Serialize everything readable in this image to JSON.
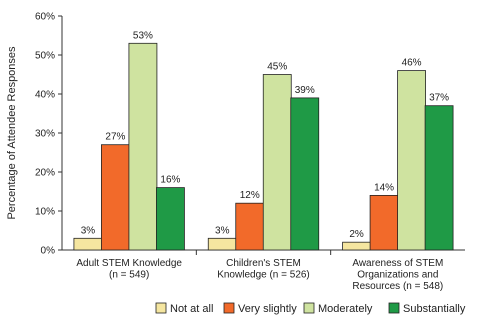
{
  "chart_data": {
    "type": "bar",
    "ylabel": "Percentage of Attendee Responses",
    "ylim": [
      0,
      60
    ],
    "yticks": [
      "0%",
      "10%",
      "20%",
      "30%",
      "40%",
      "50%",
      "60%"
    ],
    "ytick_values": [
      0,
      10,
      20,
      30,
      40,
      50,
      60
    ],
    "grid": false,
    "legend_position": "bottom",
    "categories": [
      [
        "Adult STEM Knowledge",
        "(n = 549)"
      ],
      [
        "Children's STEM",
        "Knowledge (n = 526)"
      ],
      [
        "Awareness of STEM",
        "Organizations and",
        "Resources (n = 548)"
      ]
    ],
    "series": [
      {
        "name": "Not at all",
        "color": "#f5e6a0",
        "values": [
          3,
          3,
          2
        ],
        "labels": [
          "3%",
          "3%",
          "2%"
        ]
      },
      {
        "name": "Very slightly",
        "color": "#f26a2a",
        "values": [
          27,
          12,
          14
        ],
        "labels": [
          "27%",
          "12%",
          "14%"
        ]
      },
      {
        "name": "Moderately",
        "color": "#cfe3a0",
        "values": [
          53,
          45,
          46
        ],
        "labels": [
          "53%",
          "45%",
          "46%"
        ]
      },
      {
        "name": "Substantially",
        "color": "#1f9a46",
        "values": [
          16,
          39,
          37
        ],
        "labels": [
          "16%",
          "39%",
          "37%"
        ]
      }
    ]
  }
}
